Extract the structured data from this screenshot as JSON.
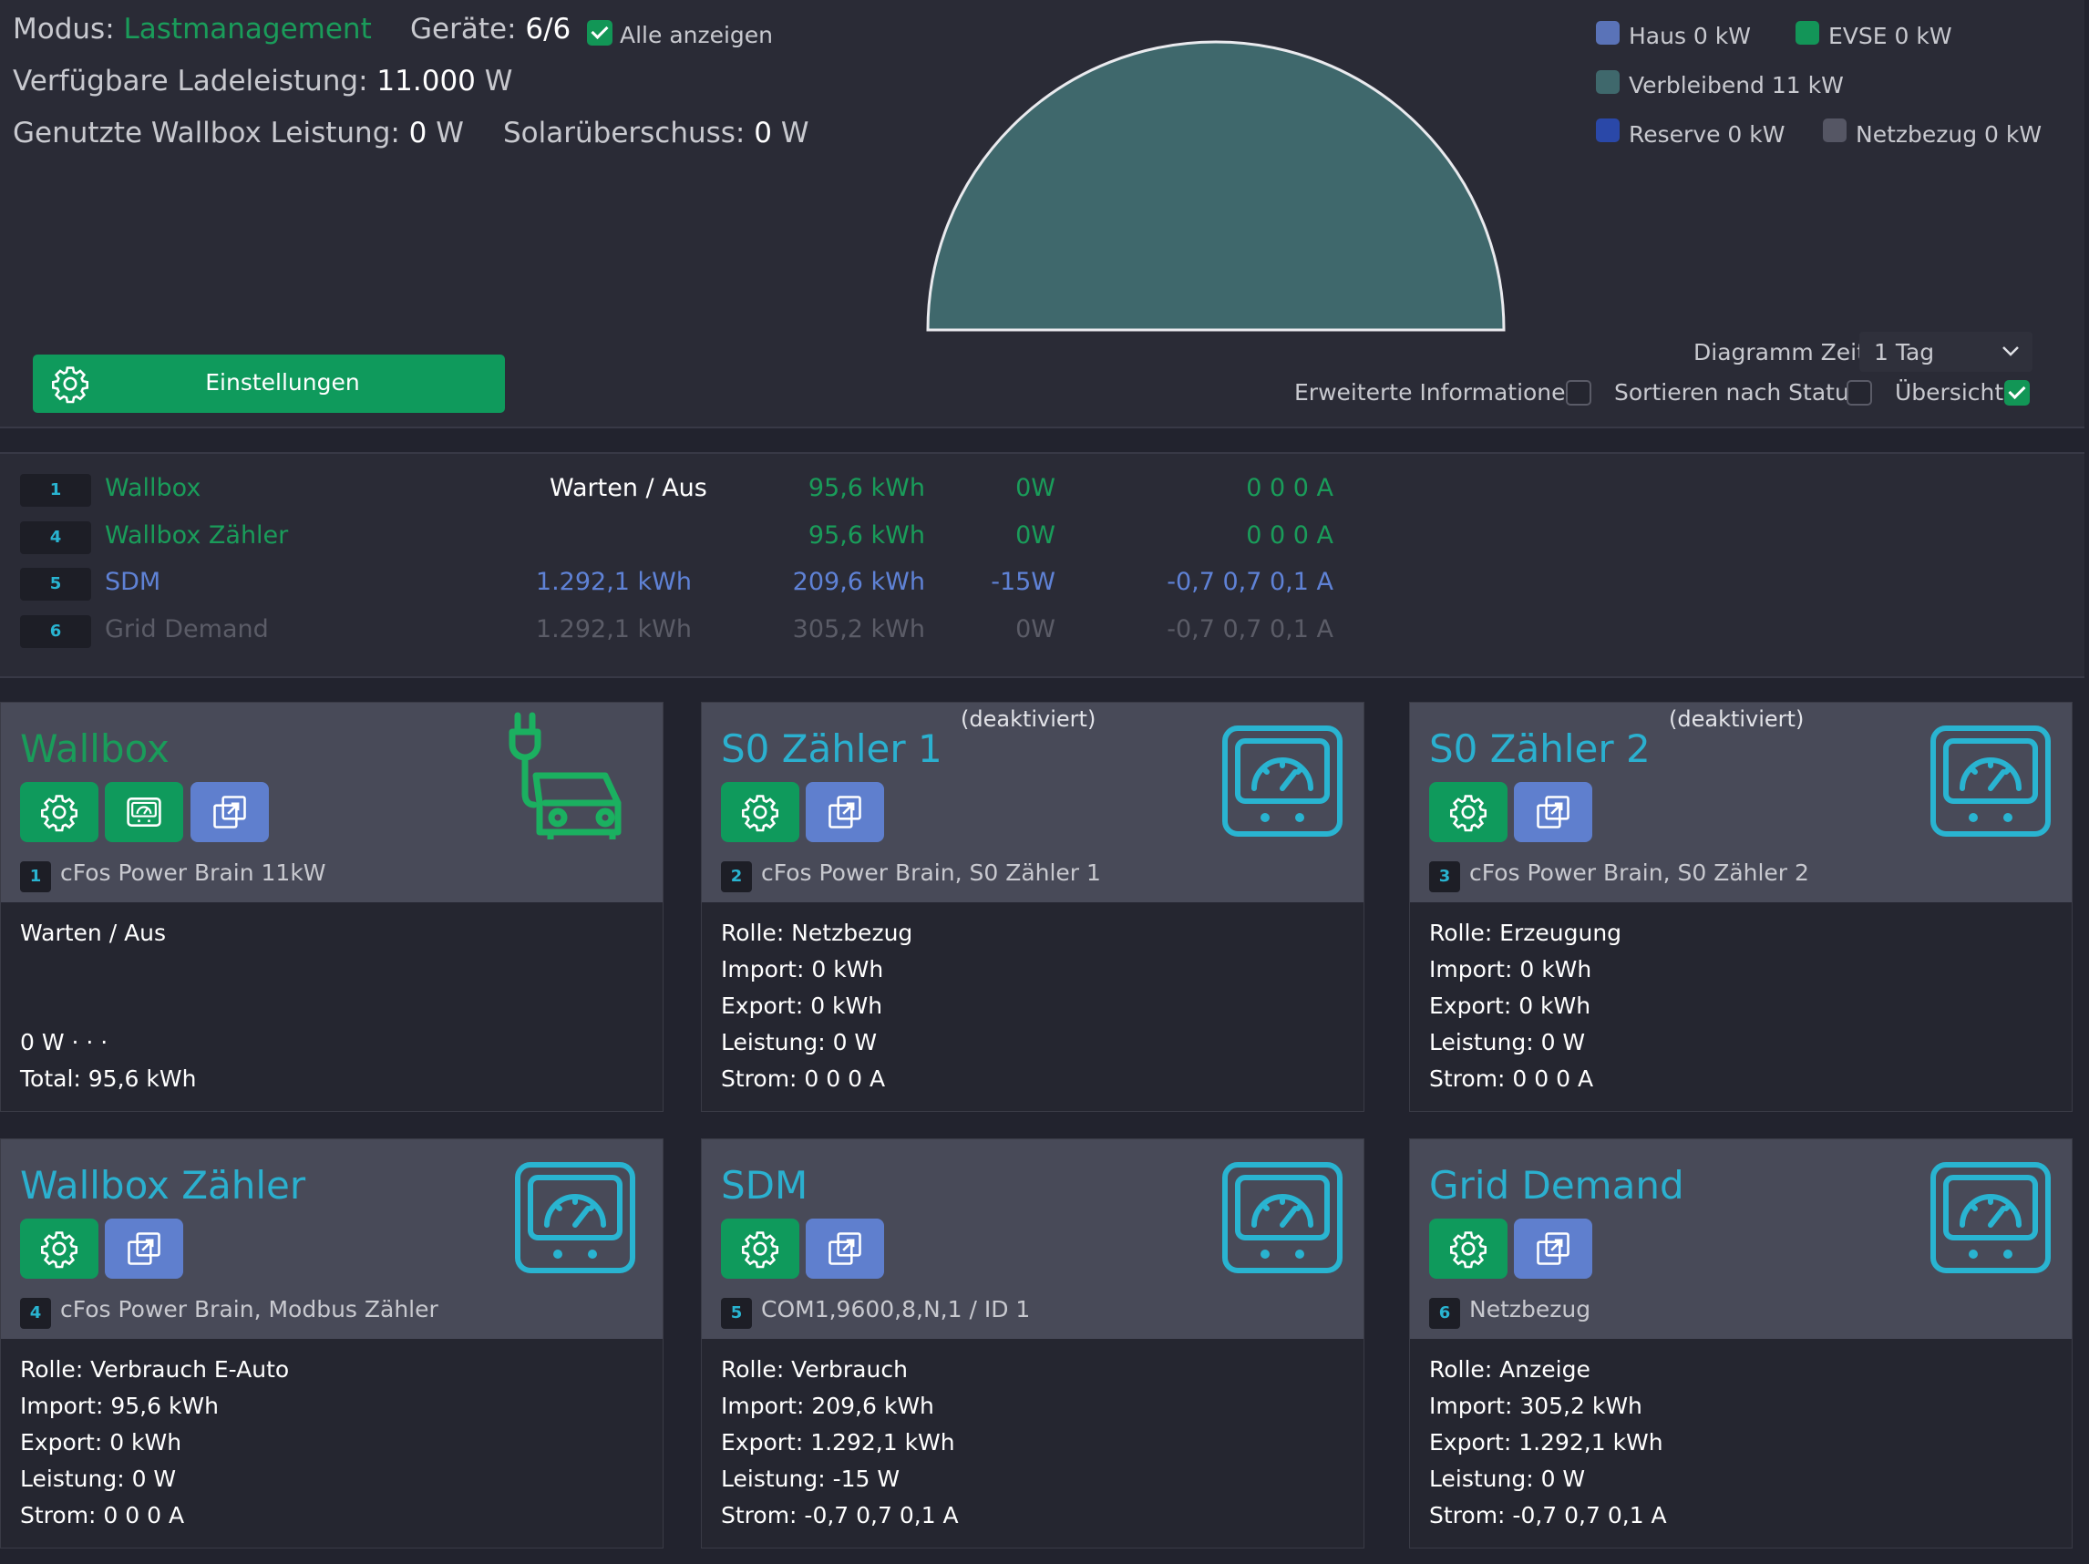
{
  "header": {
    "modus_label": "Modus:",
    "modus_value": "Lastmanagement",
    "geraete_label": "Geräte:",
    "geraete_value": "6/6",
    "alle_anzeigen_label": "Alle anzeigen",
    "alle_anzeigen_checked": true,
    "verfuegbar_label": "Verfügbare Ladeleistung:",
    "verfuegbar_value": "11.000",
    "verfuegbar_unit": "W",
    "genutzt_label": "Genutzte Wallbox Leistung:",
    "genutzt_value": "0",
    "genutzt_unit": "W",
    "solar_label": "Solarüberschuss:",
    "solar_value": "0",
    "solar_unit": "W"
  },
  "gauge": {
    "segments": [
      {
        "name": "Verbleibend",
        "value_kw": 11,
        "color": "#3f686c"
      }
    ]
  },
  "legend": [
    {
      "label": "Haus 0 kW",
      "color": "#5a73b8"
    },
    {
      "label": "EVSE 0 kW",
      "color": "#139558"
    },
    {
      "label": "Verbleibend 11 kW",
      "color": "#3f686c"
    },
    {
      "label": "Reserve 0 kW",
      "color": "#2a48a8"
    },
    {
      "label": "Netzbezug 0 kW",
      "color": "#555664"
    }
  ],
  "settings_button": {
    "label": "Einstellungen"
  },
  "controls": {
    "diagramm_zeit_label": "Diagramm Zeit",
    "diagramm_zeit_value": "1 Tag",
    "erweitert_label": "Erweiterte Informationen",
    "erweitert_checked": false,
    "sortieren_label": "Sortieren nach Status",
    "sortieren_checked": false,
    "uebersicht_label": "Übersicht",
    "uebersicht_checked": true
  },
  "device_list": [
    {
      "num": "1",
      "name": "Wallbox",
      "status": "Warten / Aus",
      "energy1": "",
      "energy2": "95,6 kWh",
      "power": "0W",
      "current": "0 0 0 A",
      "color": "#1a9c5a",
      "status_color": "#ffffff"
    },
    {
      "num": "4",
      "name": "Wallbox Zähler",
      "status": "",
      "energy1": "",
      "energy2": "95,6 kWh",
      "power": "0W",
      "current": "0 0 0 A",
      "color": "#1a9c5a",
      "status_color": "#ffffff"
    },
    {
      "num": "5",
      "name": "SDM",
      "status": "",
      "energy1": "1.292,1 kWh",
      "energy2": "209,6 kWh",
      "power": "-15W",
      "current": "-0,7 0,7 0,1 A",
      "color": "#5f82d6",
      "status_color": "#ffffff"
    },
    {
      "num": "6",
      "name": "Grid Demand",
      "status": "",
      "energy1": "1.292,1 kWh",
      "energy2": "305,2 kWh",
      "power": "0W",
      "current": "-0,7 0,7 0,1 A",
      "color": "#5b5c67",
      "status_color": "#ffffff"
    }
  ],
  "cards": [
    {
      "title": "Wallbox",
      "title_color": "#1a9c5a",
      "deaktiviert": "",
      "num": "1",
      "subtitle": "cFos Power Brain 11kW",
      "icon": "ev-car-icon",
      "lines": [
        "Warten / Aus",
        "",
        "",
        "0 W · · ·",
        "Total: 95,6 kWh"
      ]
    },
    {
      "title": "S0 Zähler 1",
      "title_color": "#2bb0cf",
      "deaktiviert": "(deaktiviert)",
      "num": "2",
      "subtitle": "cFos Power Brain, S0 Zähler 1",
      "icon": "meter-icon",
      "lines": [
        "Rolle: Netzbezug",
        "Import: 0 kWh",
        "Export: 0 kWh",
        "Leistung: 0 W",
        "Strom: 0 0 0 A"
      ]
    },
    {
      "title": "S0 Zähler 2",
      "title_color": "#2bb0cf",
      "deaktiviert": "(deaktiviert)",
      "num": "3",
      "subtitle": "cFos Power Brain, S0 Zähler 2",
      "icon": "meter-icon",
      "lines": [
        "Rolle: Erzeugung",
        "Import: 0 kWh",
        "Export: 0 kWh",
        "Leistung: 0 W",
        "Strom: 0 0 0 A"
      ]
    },
    {
      "title": "Wallbox Zähler",
      "title_color": "#2bb0cf",
      "deaktiviert": "",
      "num": "4",
      "subtitle": "cFos Power Brain, Modbus Zähler",
      "icon": "meter-icon",
      "lines": [
        "Rolle: Verbrauch E-Auto",
        "Import: 95,6 kWh",
        "Export: 0 kWh",
        "Leistung: 0 W",
        "Strom: 0 0 0 A"
      ]
    },
    {
      "title": "SDM",
      "title_color": "#2bb0cf",
      "deaktiviert": "",
      "num": "5",
      "subtitle": "COM1,9600,8,N,1 / ID 1",
      "icon": "meter-icon",
      "lines": [
        "Rolle: Verbrauch",
        "Import: 209,6 kWh",
        "Export: 1.292,1 kWh",
        "Leistung: -15 W",
        "Strom: -0,7 0,7 0,1 A"
      ]
    },
    {
      "title": "Grid Demand",
      "title_color": "#2bb0cf",
      "deaktiviert": "",
      "num": "6",
      "subtitle": "Netzbezug",
      "icon": "meter-icon",
      "lines": [
        "Rolle: Anzeige",
        "Import: 305,2 kWh",
        "Export: 1.292,1 kWh",
        "Leistung: 0 W",
        "Strom: -0,7 0,7 0,1 A"
      ]
    }
  ]
}
